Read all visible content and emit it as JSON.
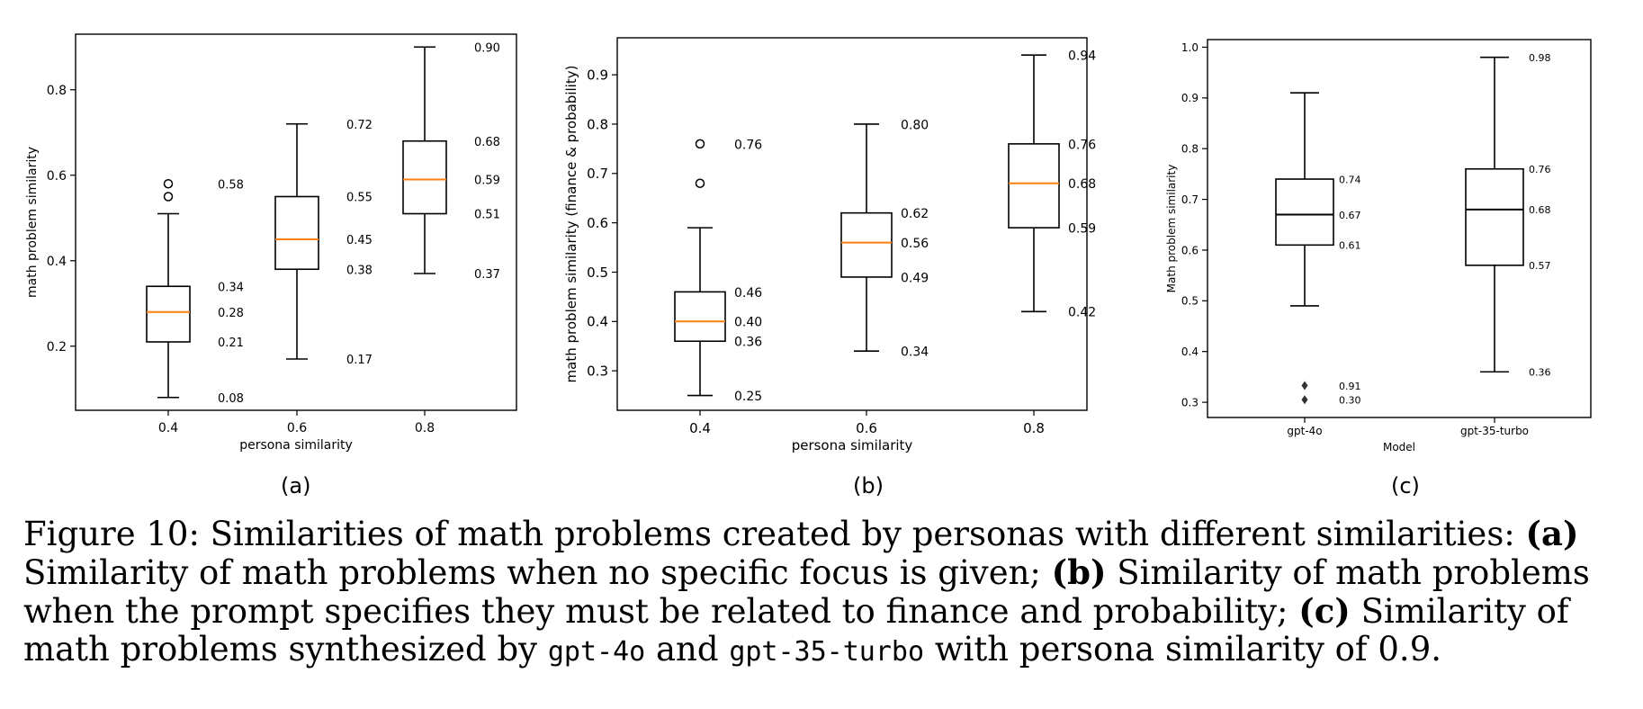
{
  "chart_data": [
    {
      "type": "box",
      "xlabel": "persona similarity",
      "ylabel": "math problem similarity",
      "panel_label": "(a)",
      "categories": [
        "0.4",
        "0.6",
        "0.8"
      ],
      "yticks": [
        "0.2",
        "0.4",
        "0.6",
        "0.8"
      ],
      "ylim": [
        0.05,
        0.93
      ],
      "median_color": "#ff7f0e",
      "boxes": [
        {
          "whisker_low": 0.08,
          "q1": 0.21,
          "median": 0.28,
          "q3": 0.34,
          "whisker_high": 0.51,
          "outliers": [
            0.55,
            0.58
          ],
          "labels": [
            "0.08",
            "0.21",
            "0.28",
            "0.34",
            "0.58"
          ]
        },
        {
          "whisker_low": 0.17,
          "q1": 0.38,
          "median": 0.45,
          "q3": 0.55,
          "whisker_high": 0.72,
          "outliers": [],
          "labels": [
            "0.17",
            "0.38",
            "0.45",
            "0.55",
            "0.72"
          ]
        },
        {
          "whisker_low": 0.37,
          "q1": 0.51,
          "median": 0.59,
          "q3": 0.68,
          "whisker_high": 0.9,
          "outliers": [],
          "labels": [
            "0.37",
            "0.51",
            "0.59",
            "0.68",
            "0.90"
          ]
        }
      ]
    },
    {
      "type": "box",
      "xlabel": "persona similarity",
      "ylabel": "math problem similarity (finance & probability)",
      "panel_label": "(b)",
      "categories": [
        "0.4",
        "0.6",
        "0.8"
      ],
      "yticks": [
        "0.3",
        "0.4",
        "0.5",
        "0.6",
        "0.7",
        "0.8",
        "0.9"
      ],
      "ylim": [
        0.22,
        0.975
      ],
      "median_color": "#ff7f0e",
      "boxes": [
        {
          "whisker_low": 0.25,
          "q1": 0.36,
          "median": 0.4,
          "q3": 0.46,
          "whisker_high": 0.59,
          "outliers": [
            0.68,
            0.76
          ],
          "labels": [
            "0.25",
            "0.36",
            "0.40",
            "0.46",
            "0.76"
          ]
        },
        {
          "whisker_low": 0.34,
          "q1": 0.49,
          "median": 0.56,
          "q3": 0.62,
          "whisker_high": 0.8,
          "outliers": [],
          "labels": [
            "0.34",
            "0.49",
            "0.56",
            "0.62",
            "0.80"
          ]
        },
        {
          "whisker_low": 0.42,
          "q1": 0.59,
          "median": 0.68,
          "q3": 0.76,
          "whisker_high": 0.94,
          "outliers": [],
          "labels": [
            "0.42",
            "0.59",
            "0.68",
            "0.76",
            "0.94"
          ]
        }
      ]
    },
    {
      "type": "box",
      "xlabel": "Model",
      "ylabel": "Math problem similarity",
      "panel_label": "(c)",
      "categories": [
        "gpt-4o",
        "gpt-35-turbo"
      ],
      "yticks": [
        "0.3",
        "0.4",
        "0.5",
        "0.6",
        "0.7",
        "0.8",
        "0.9",
        "1.0"
      ],
      "ylim": [
        0.27,
        1.015
      ],
      "median_color": "#000000",
      "boxes": [
        {
          "whisker_low": 0.49,
          "q1": 0.61,
          "median": 0.67,
          "q3": 0.74,
          "whisker_high": 0.91,
          "outliers": [
            0.305,
            0.333
          ],
          "labels": [
            "0.30",
            "0.61",
            "0.67",
            "0.74",
            "0.91"
          ]
        },
        {
          "whisker_low": 0.36,
          "q1": 0.57,
          "median": 0.68,
          "q3": 0.76,
          "whisker_high": 0.98,
          "outliers": [],
          "labels": [
            "0.36",
            "0.57",
            "0.68",
            "0.76",
            "0.98"
          ]
        }
      ]
    }
  ],
  "caption": {
    "prefix": "Figure 10: Similarities of math problems created by personas with different similarities: ",
    "a_label": "(a)",
    "a_text": " Similarity of math problems when no specific focus is given; ",
    "b_label": "(b)",
    "b_text": " Similarity of math problems when the prompt specifies they must be related to finance and probability; ",
    "c_label": "(c)",
    "c_text": " Similarity of math problems synthesized by ",
    "model1": "gpt-4o",
    "and_text": " and ",
    "model2": "gpt-35-turbo",
    "suffix": " with persona similarity of 0.9."
  }
}
